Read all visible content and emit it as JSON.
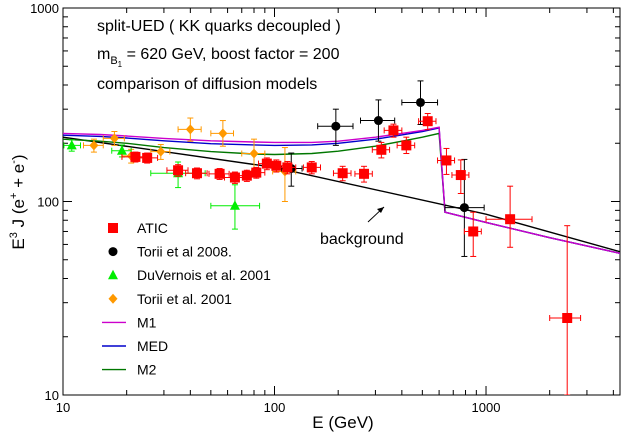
{
  "chart_data": {
    "type": "scatter",
    "annotations": [
      "split-UED ( KK quarks decoupled )",
      "comparison of  diffusion models",
      "background"
    ],
    "mass_line": {
      "m": "m",
      "sub": "B",
      "subsub": "1",
      "text": " = 620 GeV,  boost factor = 200"
    },
    "xlabel": "E (GeV)",
    "ylabel": {
      "e3": "E",
      "sup3": "3",
      "jpart": " J (e",
      "plus": "+",
      "mid": " + e",
      "minus": "-",
      "close": ")"
    },
    "xscale": "log",
    "yscale": "log",
    "xlim": [
      10,
      4300
    ],
    "ylim": [
      10,
      1000
    ],
    "x_ticks": [
      10,
      100,
      1000
    ],
    "x_tick_labels": [
      "10",
      "100",
      "1000"
    ],
    "y_ticks": [
      10,
      100,
      1000
    ],
    "y_tick_labels": [
      "10",
      "100",
      "1000"
    ],
    "grid": false,
    "legend_placement": "bottom-left",
    "series": [
      {
        "name": "ATIC",
        "kind": "points",
        "marker": "square",
        "color": "#ff0000",
        "points": [
          {
            "x": 22,
            "y": 170,
            "xl": 19,
            "xh": 25,
            "yl": 160,
            "yh": 180
          },
          {
            "x": 25,
            "y": 168,
            "xl": 22,
            "xh": 28,
            "yl": 158,
            "yh": 178
          },
          {
            "x": 35,
            "y": 145,
            "xl": 31,
            "xh": 39,
            "yl": 135,
            "yh": 155
          },
          {
            "x": 43,
            "y": 140,
            "xl": 38,
            "xh": 48,
            "yl": 131,
            "yh": 149
          },
          {
            "x": 55,
            "y": 139,
            "xl": 49,
            "xh": 61,
            "yl": 130,
            "yh": 148
          },
          {
            "x": 65,
            "y": 133,
            "xl": 58,
            "xh": 72,
            "yl": 124,
            "yh": 142
          },
          {
            "x": 74,
            "y": 136,
            "xl": 66,
            "xh": 82,
            "yl": 127,
            "yh": 145
          },
          {
            "x": 82,
            "y": 141,
            "xl": 74,
            "xh": 90,
            "yl": 132,
            "yh": 150
          },
          {
            "x": 92,
            "y": 157,
            "xl": 84,
            "xh": 100,
            "yl": 146,
            "yh": 168
          },
          {
            "x": 102,
            "y": 153,
            "xl": 93,
            "xh": 112,
            "yl": 142,
            "yh": 164
          },
          {
            "x": 115,
            "y": 150,
            "xl": 105,
            "xh": 126,
            "yl": 139,
            "yh": 161
          },
          {
            "x": 150,
            "y": 150,
            "xl": 137,
            "xh": 165,
            "yl": 139,
            "yh": 161
          },
          {
            "x": 210,
            "y": 140,
            "xl": 190,
            "xh": 230,
            "yl": 128,
            "yh": 152
          },
          {
            "x": 265,
            "y": 139,
            "xl": 240,
            "xh": 290,
            "yl": 126,
            "yh": 152
          },
          {
            "x": 320,
            "y": 185,
            "xl": 290,
            "xh": 350,
            "yl": 168,
            "yh": 202
          },
          {
            "x": 365,
            "y": 233,
            "xl": 330,
            "xh": 400,
            "yl": 215,
            "yh": 251
          },
          {
            "x": 420,
            "y": 195,
            "xl": 380,
            "xh": 460,
            "yl": 177,
            "yh": 215
          },
          {
            "x": 530,
            "y": 260,
            "xl": 480,
            "xh": 580,
            "yl": 235,
            "yh": 285
          },
          {
            "x": 650,
            "y": 163,
            "xl": 590,
            "xh": 710,
            "yl": 138,
            "yh": 188
          },
          {
            "x": 760,
            "y": 137,
            "xl": 690,
            "xh": 830,
            "yl": 110,
            "yh": 164
          },
          {
            "x": 870,
            "y": 70,
            "xl": 790,
            "xh": 950,
            "yl": 52,
            "yh": 88
          },
          {
            "x": 1300,
            "y": 81,
            "xl": 1000,
            "xh": 1650,
            "yl": 58,
            "yh": 120
          },
          {
            "x": 2420,
            "y": 25,
            "xl": 2000,
            "xh": 2800,
            "yl": 10,
            "yh": 75
          }
        ]
      },
      {
        "name": "Torii et al 2008.",
        "kind": "points",
        "marker": "circle",
        "color": "#000000",
        "points": [
          {
            "x": 120,
            "y": 148,
            "xl": 108,
            "xh": 135,
            "yl": 120,
            "yh": 178
          },
          {
            "x": 195,
            "y": 245,
            "xl": 160,
            "xh": 235,
            "yl": 195,
            "yh": 300
          },
          {
            "x": 310,
            "y": 262,
            "xl": 255,
            "xh": 370,
            "yl": 205,
            "yh": 335
          },
          {
            "x": 490,
            "y": 325,
            "xl": 400,
            "xh": 590,
            "yl": 250,
            "yh": 420
          },
          {
            "x": 790,
            "y": 93,
            "xl": 640,
            "xh": 980,
            "yl": 52,
            "yh": 165
          }
        ]
      },
      {
        "name": "DuVernois et al. 2001",
        "kind": "points",
        "marker": "triangle",
        "color": "#00ee00",
        "points": [
          {
            "x": 11,
            "y": 195,
            "xl": 10.1,
            "xh": 12.1,
            "yl": 182,
            "yh": 208
          },
          {
            "x": 19,
            "y": 183,
            "xl": 17,
            "xh": 21,
            "yl": 170,
            "yh": 196
          },
          {
            "x": 35,
            "y": 140,
            "xl": 26,
            "xh": 47,
            "yl": 118,
            "yh": 160
          },
          {
            "x": 65,
            "y": 95,
            "xl": 50,
            "xh": 85,
            "yl": 72,
            "yh": 122
          }
        ]
      },
      {
        "name": "Torii et al. 2001",
        "kind": "points",
        "marker": "diamond",
        "color": "#ff9900",
        "points": [
          {
            "x": 14,
            "y": 195,
            "xl": 12.5,
            "xh": 15.5,
            "yl": 180,
            "yh": 210
          },
          {
            "x": 17.5,
            "y": 212,
            "xl": 15.5,
            "xh": 19.5,
            "yl": 195,
            "yh": 230
          },
          {
            "x": 21,
            "y": 172,
            "xl": 19,
            "xh": 23,
            "yl": 158,
            "yh": 186
          },
          {
            "x": 29,
            "y": 181,
            "xl": 26,
            "xh": 32,
            "yl": 165,
            "yh": 197
          },
          {
            "x": 40,
            "y": 236,
            "xl": 35,
            "xh": 45,
            "yl": 205,
            "yh": 270
          },
          {
            "x": 57,
            "y": 225,
            "xl": 50,
            "xh": 64,
            "yl": 193,
            "yh": 262
          },
          {
            "x": 80,
            "y": 177,
            "xl": 70,
            "xh": 90,
            "yl": 145,
            "yh": 210
          },
          {
            "x": 112,
            "y": 143,
            "xl": 98,
            "xh": 126,
            "yl": 100,
            "yh": 190
          }
        ]
      },
      {
        "name": "M1",
        "kind": "line",
        "color": "#cc00cc",
        "points": [
          [
            10,
            225
          ],
          [
            15,
            222
          ],
          [
            20,
            218
          ],
          [
            30,
            212
          ],
          [
            50,
            206
          ],
          [
            80,
            203
          ],
          [
            100,
            202
          ],
          [
            150,
            202
          ],
          [
            200,
            205
          ],
          [
            300,
            215
          ],
          [
            400,
            225
          ],
          [
            500,
            233
          ],
          [
            600,
            242
          ],
          [
            640,
            88
          ],
          [
            1000,
            78
          ],
          [
            2000,
            65
          ],
          [
            4300,
            54
          ]
        ]
      },
      {
        "name": "MED",
        "kind": "line",
        "color": "#0000cc",
        "points": [
          [
            10,
            220
          ],
          [
            15,
            217
          ],
          [
            20,
            213
          ],
          [
            30,
            206
          ],
          [
            50,
            199
          ],
          [
            80,
            196
          ],
          [
            100,
            195
          ],
          [
            150,
            196
          ],
          [
            200,
            200
          ],
          [
            300,
            210
          ],
          [
            400,
            221
          ],
          [
            500,
            230
          ],
          [
            600,
            240
          ],
          [
            640,
            88
          ],
          [
            1000,
            78
          ],
          [
            2000,
            65
          ],
          [
            4300,
            54
          ]
        ]
      },
      {
        "name": "M2",
        "kind": "line",
        "color": "#007700",
        "points": [
          [
            10,
            210
          ],
          [
            15,
            205
          ],
          [
            20,
            200
          ],
          [
            30,
            190
          ],
          [
            50,
            181
          ],
          [
            80,
            176
          ],
          [
            100,
            175
          ],
          [
            150,
            177
          ],
          [
            200,
            182
          ],
          [
            300,
            193
          ],
          [
            400,
            205
          ],
          [
            500,
            215
          ],
          [
            600,
            225
          ],
          [
            640,
            88
          ],
          [
            1000,
            78
          ],
          [
            2000,
            65
          ],
          [
            4300,
            54
          ]
        ]
      },
      {
        "name": "background",
        "kind": "line",
        "color": "#000000",
        "points": [
          [
            10,
            215
          ],
          [
            100,
            150
          ],
          [
            1000,
            86
          ],
          [
            4300,
            55
          ]
        ]
      }
    ]
  }
}
